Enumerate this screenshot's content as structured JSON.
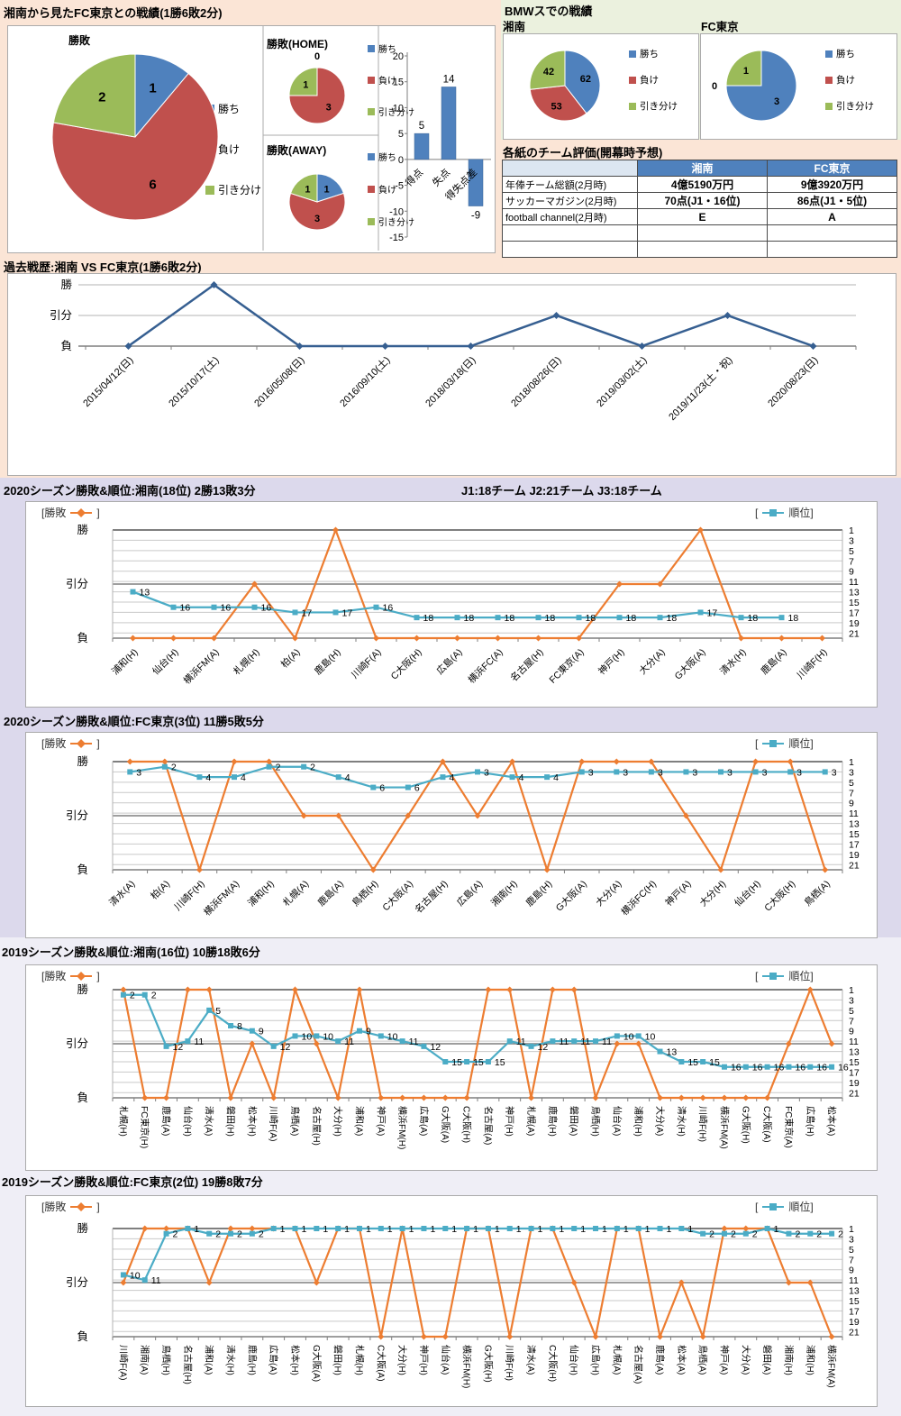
{
  "colors": {
    "win_blue": "#4F81BD",
    "lose_red": "#C0504D",
    "draw_green": "#9BBB59",
    "orange_line": "#ED7D31",
    "teal_line": "#4BACC6",
    "history_line": "#365F91",
    "table_header": "#4F81BD",
    "band_pink": "#fbe5d6",
    "band_green": "#ebf1de",
    "band_lavender": "#dcd9ec",
    "band_lavender_light": "#efeef6",
    "grid_gray": "#c9c9c9",
    "axis_dark": "#7f7f7f"
  },
  "pie_legend": [
    "勝ち",
    "負け",
    "引き分け"
  ],
  "section1": {
    "title": "湘南から見たFC東京との戦績(1勝6敗2分)"
  },
  "section2": {
    "title": "BMWスでの戦績"
  },
  "table": {
    "title": "各紙のチーム評価(開幕時予想)",
    "headers": [
      "",
      "湘南",
      "FC東京"
    ],
    "rows": [
      [
        "年俸チーム総額(2月時)",
        "4億5190万円",
        "9億3920万円"
      ],
      [
        "サッカーマガジン(2月時)",
        "70点(J1・16位)",
        "86点(J1・5位)"
      ],
      [
        "football channel(2月時)",
        "E",
        "A"
      ]
    ],
    "empty_rows": 2
  },
  "legend": {
    "left_open": "[勝敗",
    "left_close": "]",
    "right_open": "[",
    "right_close": "順位]"
  },
  "chart_data": [
    {
      "id": "pie-main",
      "type": "pie",
      "title": "勝敗",
      "labels": [
        "勝ち",
        "負け",
        "引き分け"
      ],
      "values": [
        1,
        6,
        2
      ]
    },
    {
      "id": "pie-home",
      "type": "pie",
      "title": "勝敗(HOME)",
      "labels": [
        "勝ち",
        "負け",
        "引き分け"
      ],
      "values": [
        0,
        3,
        1
      ]
    },
    {
      "id": "pie-away",
      "type": "pie",
      "title": "勝敗(AWAY)",
      "labels": [
        "勝ち",
        "負け",
        "引き分け"
      ],
      "values": [
        1,
        3,
        1
      ]
    },
    {
      "id": "bars-goals",
      "type": "bar",
      "categories": [
        "得点",
        "失点",
        "得失点差"
      ],
      "values": [
        5,
        14,
        -9
      ],
      "ylim": [
        -15,
        20
      ],
      "step": 5
    },
    {
      "id": "pie-bmw-shonan",
      "type": "pie",
      "title": "湘南",
      "labels": [
        "勝ち",
        "負け",
        "引き分け"
      ],
      "values": [
        62,
        53,
        42
      ]
    },
    {
      "id": "pie-bmw-fctokyo",
      "type": "pie",
      "title": "FC東京",
      "labels": [
        "勝ち",
        "負け",
        "引き分け"
      ],
      "values": [
        3,
        0,
        1
      ]
    },
    {
      "id": "history",
      "type": "line",
      "title": "過去戦歴:湘南 VS FC東京(1勝6敗2分)",
      "ylabels": [
        "勝",
        "引分",
        "負"
      ],
      "x": [
        "2015/04/12(日)",
        "2015/10/17(土)",
        "2016/05/08(日)",
        "2016/09/10(土)",
        "2018/03/18(日)",
        "2018/08/26(日)",
        "2019/03/02(土)",
        "2019/11/23(土・祝)",
        "2020/08/23(日)"
      ],
      "results": [
        "L",
        "W",
        "L",
        "L",
        "L",
        "D",
        "L",
        "D",
        "L"
      ]
    },
    {
      "id": "season-2020-shonan",
      "type": "line",
      "title": "2020シーズン勝敗&順位:湘南(18位) 2勝13敗3分",
      "note": "J1:18チーム  J2:21チーム  J3:18チーム",
      "ylabels": [
        "勝",
        "引分",
        "負"
      ],
      "right_ticks": [
        1,
        3,
        5,
        7,
        9,
        11,
        13,
        15,
        17,
        19,
        21
      ],
      "categories": [
        "浦和(H)",
        "仙台(H)",
        "横浜FM(A)",
        "札幌(H)",
        "柏(A)",
        "鹿島(H)",
        "川崎F(A)",
        "C大阪(H)",
        "広島(A)",
        "横浜FC(A)",
        "名古屋(H)",
        "FC東京(A)",
        "神戸(H)",
        "大分(A)",
        "G大阪(A)",
        "清水(H)",
        "鹿島(A)",
        "川崎F(H)"
      ],
      "results": [
        "L",
        "L",
        "L",
        "D",
        "L",
        "W",
        "L",
        "L",
        "L",
        "L",
        "L",
        "L",
        "D",
        "D",
        "W",
        "L",
        "L",
        "L"
      ],
      "ranks": [
        13,
        16,
        16,
        16,
        17,
        17,
        16,
        18,
        18,
        18,
        18,
        18,
        18,
        18,
        17,
        18,
        18,
        null
      ]
    },
    {
      "id": "season-2020-fctokyo",
      "type": "line",
      "title": "2020シーズン勝敗&順位:FC東京(3位) 11勝5敗5分",
      "ylabels": [
        "勝",
        "引分",
        "負"
      ],
      "right_ticks": [
        1,
        3,
        5,
        7,
        9,
        11,
        13,
        15,
        17,
        19,
        21
      ],
      "categories": [
        "清水(A)",
        "柏(A)",
        "川崎F(H)",
        "横浜FM(A)",
        "浦和(H)",
        "札幌(A)",
        "鹿島(A)",
        "鳥栖(H)",
        "C大阪(A)",
        "名古屋(H)",
        "広島(A)",
        "湘南(H)",
        "鹿島(H)",
        "G大阪(A)",
        "大分(A)",
        "横浜FC(H)",
        "神戸(A)",
        "大分(H)",
        "仙台(H)",
        "C大阪(H)",
        "鳥栖(A)"
      ],
      "results": [
        "W",
        "W",
        "L",
        "W",
        "W",
        "D",
        "D",
        "L",
        "D",
        "W",
        "D",
        "W",
        "L",
        "W",
        "W",
        "W",
        "D",
        "L",
        "W",
        "W",
        "L"
      ],
      "ranks": [
        3,
        2,
        4,
        4,
        2,
        2,
        4,
        6,
        6,
        4,
        3,
        4,
        4,
        3,
        3,
        3,
        3,
        3,
        3,
        3,
        3
      ]
    },
    {
      "id": "season-2019-shonan",
      "type": "line",
      "title": "2019シーズン勝敗&順位:湘南(16位) 10勝18敗6分",
      "ylabels": [
        "勝",
        "引分",
        "負"
      ],
      "right_ticks": [
        1,
        3,
        5,
        7,
        9,
        11,
        13,
        15,
        17,
        19,
        21
      ],
      "categories": [
        "札幌(H)",
        "FC東京(H)",
        "鹿島(A)",
        "仙台(H)",
        "清水(A)",
        "磐田(H)",
        "松本(H)",
        "川崎F(A)",
        "鳥栖(A)",
        "名古屋(H)",
        "大分(H)",
        "浦和(A)",
        "神戸(A)",
        "横浜FM(H)",
        "広島(A)",
        "G大阪(A)",
        "C大阪(H)",
        "名古屋(A)",
        "神戸(H)",
        "札幌(A)",
        "鹿島(H)",
        "磐田(A)",
        "鳥栖(H)",
        "仙台(A)",
        "浦和(H)",
        "大分(A)",
        "清水(H)",
        "川崎F(H)",
        "横浜FM(A)",
        "G大阪(H)",
        "C大阪(A)",
        "FC東京(A)",
        "広島(H)",
        "松本(A)"
      ],
      "results": [
        "W",
        "L",
        "L",
        "W",
        "W",
        "L",
        "D",
        "L",
        "W",
        "D",
        "L",
        "W",
        "L",
        "L",
        "L",
        "L",
        "L",
        "W",
        "W",
        "L",
        "W",
        "W",
        "L",
        "D",
        "D",
        "L",
        "L",
        "L",
        "L",
        "L",
        "L",
        "D",
        "W",
        "D"
      ],
      "ranks": [
        2,
        2,
        12,
        11,
        5,
        8,
        9,
        12,
        10,
        10,
        11,
        9,
        10,
        11,
        12,
        15,
        15,
        15,
        11,
        12,
        11,
        11,
        11,
        10,
        10,
        13,
        15,
        15,
        16,
        16,
        16,
        16,
        16,
        16
      ]
    },
    {
      "id": "season-2019-fctokyo",
      "type": "line",
      "title": "2019シーズン勝敗&順位:FC東京(2位) 19勝8敗7分",
      "ylabels": [
        "勝",
        "引分",
        "負"
      ],
      "right_ticks": [
        1,
        3,
        5,
        7,
        9,
        11,
        13,
        15,
        17,
        19,
        21
      ],
      "categories": [
        "川崎F(A)",
        "湘南(A)",
        "鳥栖(H)",
        "名古屋(H)",
        "浦和(A)",
        "清水(H)",
        "鹿島(H)",
        "広島(A)",
        "松本(H)",
        "G大阪(A)",
        "磐田(H)",
        "札幌(H)",
        "C大阪(A)",
        "大分(H)",
        "神戸(H)",
        "仙台(A)",
        "横浜FM(H)",
        "G大阪(H)",
        "川崎F(H)",
        "清水(A)",
        "C大阪(H)",
        "仙台(H)",
        "広島(H)",
        "札幌(A)",
        "名古屋(A)",
        "鹿島(A)",
        "松本(A)",
        "鳥栖(A)",
        "神戸(A)",
        "大分(A)",
        "磐田(A)",
        "湘南(H)",
        "浦和(H)",
        "横浜FM(A)"
      ],
      "results": [
        "D",
        "W",
        "W",
        "W",
        "D",
        "W",
        "W",
        "W",
        "W",
        "D",
        "W",
        "W",
        "L",
        "W",
        "L",
        "L",
        "W",
        "W",
        "L",
        "W",
        "W",
        "D",
        "L",
        "W",
        "W",
        "L",
        "D",
        "L",
        "W",
        "W",
        "W",
        "D",
        "D",
        "L"
      ],
      "ranks": [
        10,
        11,
        2,
        1,
        2,
        2,
        2,
        1,
        1,
        1,
        1,
        1,
        1,
        1,
        1,
        1,
        1,
        1,
        1,
        1,
        1,
        1,
        1,
        1,
        1,
        1,
        1,
        2,
        2,
        2,
        1,
        2,
        2,
        2
      ]
    }
  ]
}
